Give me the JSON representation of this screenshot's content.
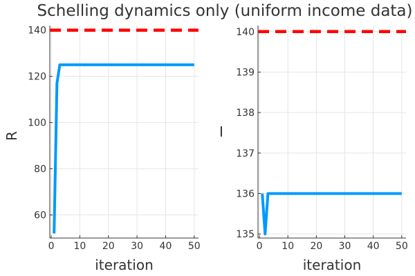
{
  "title": "Schelling dynamics only (uniform income data)",
  "colors": {
    "series": "#009AFA",
    "reference": "#FF0000",
    "grid": "#E5E5E5",
    "axis": "#333333"
  },
  "chart_data": [
    {
      "type": "line",
      "title": "",
      "xlabel": "iteration",
      "ylabel": "R",
      "xlim": [
        -0.5,
        51.5
      ],
      "ylim": [
        50,
        142
      ],
      "xticks": [
        0,
        10,
        20,
        30,
        40,
        50
      ],
      "yticks": [
        60,
        80,
        100,
        120,
        140
      ],
      "grid": true,
      "legend": "none",
      "series": [
        {
          "style": "solid",
          "color": "#009AFA",
          "x": [
            1,
            2,
            3,
            4,
            5,
            6,
            7,
            8,
            9,
            10,
            11,
            12,
            13,
            14,
            15,
            16,
            17,
            18,
            19,
            20,
            21,
            22,
            23,
            24,
            25,
            26,
            27,
            28,
            29,
            30,
            31,
            32,
            33,
            34,
            35,
            36,
            37,
            38,
            39,
            40,
            41,
            42,
            43,
            44,
            45,
            46,
            47,
            48,
            49,
            50
          ],
          "y": [
            52,
            117,
            125,
            125,
            125,
            125,
            125,
            125,
            125,
            125,
            125,
            125,
            125,
            125,
            125,
            125,
            125,
            125,
            125,
            125,
            125,
            125,
            125,
            125,
            125,
            125,
            125,
            125,
            125,
            125,
            125,
            125,
            125,
            125,
            125,
            125,
            125,
            125,
            125,
            125,
            125,
            125,
            125,
            125,
            125,
            125,
            125,
            125,
            125,
            125
          ]
        },
        {
          "style": "dashed",
          "color": "#FF0000",
          "x": [
            -0.5,
            51.5
          ],
          "y": [
            140,
            140
          ]
        }
      ]
    },
    {
      "type": "line",
      "title": "",
      "xlabel": "iteration",
      "ylabel": "I",
      "xlim": [
        -0.5,
        51.5
      ],
      "ylim": [
        134.9,
        140.15
      ],
      "xticks": [
        0,
        10,
        20,
        30,
        40,
        50
      ],
      "yticks": [
        135,
        136,
        137,
        138,
        139,
        140
      ],
      "grid": true,
      "legend": "none",
      "series": [
        {
          "style": "solid",
          "color": "#009AFA",
          "x": [
            1,
            2,
            3,
            4,
            5,
            6,
            7,
            8,
            9,
            10,
            11,
            12,
            13,
            14,
            15,
            16,
            17,
            18,
            19,
            20,
            21,
            22,
            23,
            24,
            25,
            26,
            27,
            28,
            29,
            30,
            31,
            32,
            33,
            34,
            35,
            36,
            37,
            38,
            39,
            40,
            41,
            42,
            43,
            44,
            45,
            46,
            47,
            48,
            49,
            50
          ],
          "y": [
            136,
            135,
            136,
            136,
            136,
            136,
            136,
            136,
            136,
            136,
            136,
            136,
            136,
            136,
            136,
            136,
            136,
            136,
            136,
            136,
            136,
            136,
            136,
            136,
            136,
            136,
            136,
            136,
            136,
            136,
            136,
            136,
            136,
            136,
            136,
            136,
            136,
            136,
            136,
            136,
            136,
            136,
            136,
            136,
            136,
            136,
            136,
            136,
            136,
            136
          ]
        },
        {
          "style": "dashed",
          "color": "#FF0000",
          "x": [
            -0.5,
            51.5
          ],
          "y": [
            140,
            140
          ]
        }
      ]
    }
  ]
}
